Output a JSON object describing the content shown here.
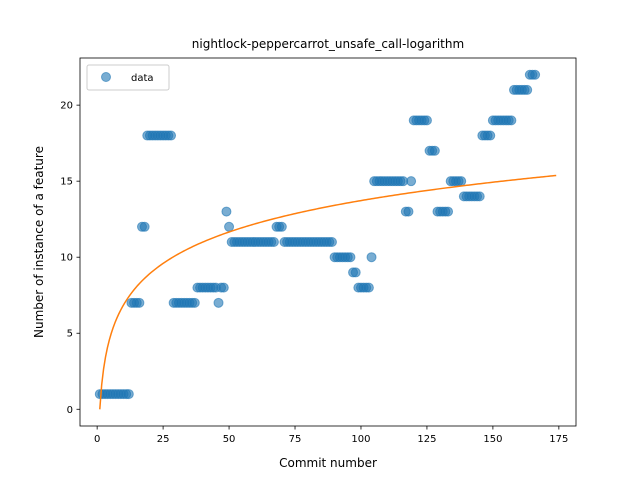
{
  "chart_data": {
    "type": "scatter",
    "title": "nightlock-peppercarrot_unsafe_call-logarithm",
    "xlabel": "Commit number",
    "ylabel": "Number of instance of a feature",
    "xlim": [
      -6.5,
      181.5
    ],
    "ylim": [
      -1.1,
      23.1
    ],
    "xticks": [
      0,
      25,
      50,
      75,
      100,
      125,
      150,
      175
    ],
    "yticks": [
      0,
      5,
      10,
      15,
      20
    ],
    "legend": {
      "placement": "upper-left",
      "entries": [
        "data"
      ]
    },
    "colors": {
      "data": "#1f77b4",
      "fit": "#ff7f0e"
    },
    "series": [
      {
        "name": "data",
        "kind": "scatter",
        "points": [
          [
            1,
            1
          ],
          [
            2,
            1
          ],
          [
            3,
            1
          ],
          [
            4,
            1
          ],
          [
            5,
            1
          ],
          [
            6,
            1
          ],
          [
            7,
            1
          ],
          [
            8,
            1
          ],
          [
            9,
            1
          ],
          [
            10,
            1
          ],
          [
            11,
            1
          ],
          [
            12,
            1
          ],
          [
            13,
            7
          ],
          [
            14,
            7
          ],
          [
            15,
            7
          ],
          [
            16,
            7
          ],
          [
            17,
            12
          ],
          [
            18,
            12
          ],
          [
            19,
            18
          ],
          [
            20,
            18
          ],
          [
            21,
            18
          ],
          [
            22,
            18
          ],
          [
            23,
            18
          ],
          [
            24,
            18
          ],
          [
            25,
            18
          ],
          [
            26,
            18
          ],
          [
            27,
            18
          ],
          [
            28,
            18
          ],
          [
            29,
            7
          ],
          [
            30,
            7
          ],
          [
            31,
            7
          ],
          [
            32,
            7
          ],
          [
            33,
            7
          ],
          [
            34,
            7
          ],
          [
            35,
            7
          ],
          [
            36,
            7
          ],
          [
            37,
            7
          ],
          [
            38,
            8
          ],
          [
            39,
            8
          ],
          [
            40,
            8
          ],
          [
            41,
            8
          ],
          [
            42,
            8
          ],
          [
            43,
            8
          ],
          [
            44,
            8
          ],
          [
            45,
            8
          ],
          [
            46,
            7
          ],
          [
            47,
            8
          ],
          [
            48,
            8
          ],
          [
            49,
            13
          ],
          [
            50,
            12
          ],
          [
            51,
            11
          ],
          [
            52,
            11
          ],
          [
            53,
            11
          ],
          [
            54,
            11
          ],
          [
            55,
            11
          ],
          [
            56,
            11
          ],
          [
            57,
            11
          ],
          [
            58,
            11
          ],
          [
            59,
            11
          ],
          [
            60,
            11
          ],
          [
            61,
            11
          ],
          [
            62,
            11
          ],
          [
            63,
            11
          ],
          [
            64,
            11
          ],
          [
            65,
            11
          ],
          [
            66,
            11
          ],
          [
            67,
            11
          ],
          [
            68,
            12
          ],
          [
            69,
            12
          ],
          [
            70,
            12
          ],
          [
            71,
            11
          ],
          [
            72,
            11
          ],
          [
            73,
            11
          ],
          [
            74,
            11
          ],
          [
            75,
            11
          ],
          [
            76,
            11
          ],
          [
            77,
            11
          ],
          [
            78,
            11
          ],
          [
            79,
            11
          ],
          [
            80,
            11
          ],
          [
            81,
            11
          ],
          [
            82,
            11
          ],
          [
            83,
            11
          ],
          [
            84,
            11
          ],
          [
            85,
            11
          ],
          [
            86,
            11
          ],
          [
            87,
            11
          ],
          [
            88,
            11
          ],
          [
            89,
            11
          ],
          [
            90,
            10
          ],
          [
            91,
            10
          ],
          [
            92,
            10
          ],
          [
            93,
            10
          ],
          [
            94,
            10
          ],
          [
            95,
            10
          ],
          [
            96,
            10
          ],
          [
            97,
            9
          ],
          [
            98,
            9
          ],
          [
            99,
            8
          ],
          [
            100,
            8
          ],
          [
            101,
            8
          ],
          [
            102,
            8
          ],
          [
            103,
            8
          ],
          [
            104,
            10
          ],
          [
            105,
            15
          ],
          [
            106,
            15
          ],
          [
            107,
            15
          ],
          [
            108,
            15
          ],
          [
            109,
            15
          ],
          [
            110,
            15
          ],
          [
            111,
            15
          ],
          [
            112,
            15
          ],
          [
            113,
            15
          ],
          [
            114,
            15
          ],
          [
            115,
            15
          ],
          [
            116,
            15
          ],
          [
            117,
            13
          ],
          [
            118,
            13
          ],
          [
            119,
            15
          ],
          [
            120,
            19
          ],
          [
            121,
            19
          ],
          [
            122,
            19
          ],
          [
            123,
            19
          ],
          [
            124,
            19
          ],
          [
            125,
            19
          ],
          [
            126,
            17
          ],
          [
            127,
            17
          ],
          [
            128,
            17
          ],
          [
            129,
            13
          ],
          [
            130,
            13
          ],
          [
            131,
            13
          ],
          [
            132,
            13
          ],
          [
            133,
            13
          ],
          [
            134,
            15
          ],
          [
            135,
            15
          ],
          [
            136,
            15
          ],
          [
            137,
            15
          ],
          [
            138,
            15
          ],
          [
            139,
            14
          ],
          [
            140,
            14
          ],
          [
            141,
            14
          ],
          [
            142,
            14
          ],
          [
            143,
            14
          ],
          [
            144,
            14
          ],
          [
            145,
            14
          ],
          [
            146,
            18
          ],
          [
            147,
            18
          ],
          [
            148,
            18
          ],
          [
            149,
            18
          ],
          [
            150,
            19
          ],
          [
            151,
            19
          ],
          [
            152,
            19
          ],
          [
            153,
            19
          ],
          [
            154,
            19
          ],
          [
            155,
            19
          ],
          [
            156,
            19
          ],
          [
            157,
            19
          ],
          [
            158,
            21
          ],
          [
            159,
            21
          ],
          [
            160,
            21
          ],
          [
            161,
            21
          ],
          [
            162,
            21
          ],
          [
            163,
            21
          ],
          [
            164,
            22
          ],
          [
            165,
            22
          ],
          [
            166,
            22
          ]
        ]
      },
      {
        "kind": "line",
        "equation": "y = 2.98 * ln(x)",
        "a": 2.98,
        "x_range": [
          1,
          174
        ]
      }
    ]
  }
}
